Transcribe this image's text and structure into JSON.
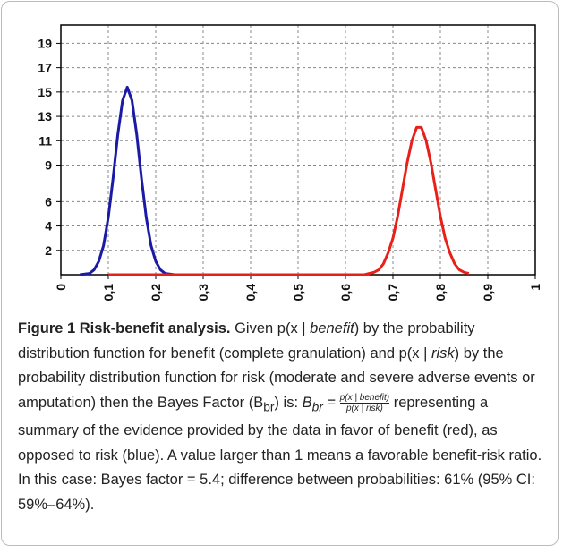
{
  "chart_data": {
    "type": "line",
    "xlim": [
      0,
      1
    ],
    "xticks": [
      {
        "value": 0,
        "label": "0"
      },
      {
        "value": 0.1,
        "label": "0,1"
      },
      {
        "value": 0.2,
        "label": "0,2"
      },
      {
        "value": 0.3,
        "label": "0,3"
      },
      {
        "value": 0.4,
        "label": "0,4"
      },
      {
        "value": 0.5,
        "label": "0,5"
      },
      {
        "value": 0.6,
        "label": "0,6"
      },
      {
        "value": 0.7,
        "label": "0,7"
      },
      {
        "value": 0.8,
        "label": "0,8"
      },
      {
        "value": 0.9,
        "label": "0,9"
      },
      {
        "value": 1,
        "label": "1"
      }
    ],
    "ylim": [
      0,
      20.5
    ],
    "yticks": [
      2,
      4,
      6,
      9,
      11,
      13,
      15,
      17,
      19
    ],
    "grid": true,
    "series": [
      {
        "color": "#1a1aa6",
        "x": [
          0.04,
          0.06,
          0.07,
          0.08,
          0.09,
          0.1,
          0.11,
          0.12,
          0.13,
          0.14,
          0.15,
          0.16,
          0.17,
          0.18,
          0.19,
          0.2,
          0.21,
          0.22,
          0.24
        ],
        "values": [
          0,
          0.1,
          0.4,
          1.1,
          2.4,
          4.7,
          7.9,
          11.5,
          14.3,
          15.4,
          14.3,
          11.5,
          7.9,
          4.7,
          2.4,
          1.1,
          0.4,
          0.1,
          0
        ]
      },
      {
        "color": "#e8201a",
        "x": [
          0.1,
          0.64,
          0.65,
          0.66,
          0.67,
          0.68,
          0.69,
          0.7,
          0.71,
          0.72,
          0.73,
          0.74,
          0.75,
          0.76,
          0.77,
          0.78,
          0.79,
          0.8,
          0.81,
          0.82,
          0.83,
          0.84,
          0.85,
          0.86
        ],
        "values": [
          0,
          0,
          0.1,
          0.2,
          0.4,
          0.9,
          1.8,
          3.0,
          4.8,
          7.0,
          9.2,
          11.0,
          12.1,
          12.1,
          11.0,
          9.2,
          7.0,
          4.8,
          3.0,
          1.8,
          0.9,
          0.4,
          0.2,
          0.1
        ]
      }
    ]
  },
  "caption": {
    "label": "Figure 1 Risk-benefit analysis.",
    "parts": [
      " Given p(x | ",
      "benefit",
      ") by the probability distribution function for benefit (complete granulation) and p(x | ",
      "risk",
      ") by the probability distribution function for risk (moderate and severe adverse events or amputation) then the Bayes Factor (B",
      "br",
      ") is: "
    ],
    "formula": {
      "lhs": "B",
      "lhs_sub": "br",
      "eq": "=",
      "numerator": "p(x | benefit)",
      "denominator": "p(x | risk)"
    },
    "rest": " representing a summary of the evidence provided by the data in favor of benefit (red), as opposed to risk (blue). A value larger than 1 means a favorable benefit-risk ratio. In this case: Bayes factor = 5.4; difference between probabilities: 61% (95% CI: 59%–64%)."
  }
}
